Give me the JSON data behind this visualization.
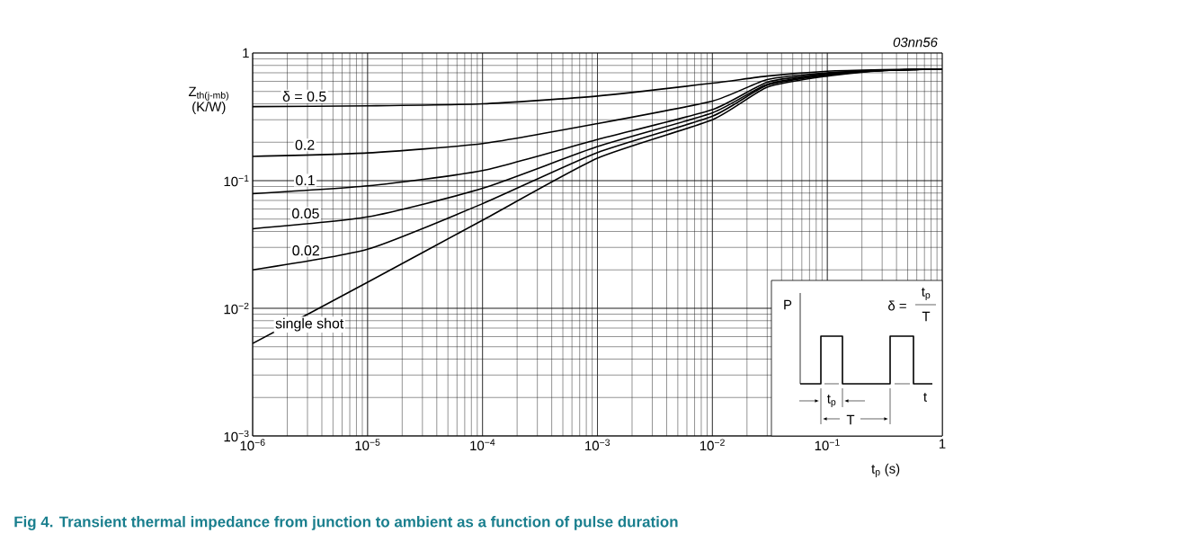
{
  "chart_data": {
    "type": "line",
    "title": "Fig 4.    Transient thermal impedance from junction to ambient as a function of pulse duration",
    "xlabel": "t$_{p}$ (s)",
    "ylabel": "Z$_{th(j-mb)}$ (K/W)",
    "log": "xy",
    "xlim": [
      1e-06,
      1
    ],
    "ylim": [
      0.001,
      1
    ],
    "xticks": [
      {
        "value": 1e-06,
        "label": "10$^{−6}$"
      },
      {
        "value": 1e-05,
        "label": "10$^{−5}$"
      },
      {
        "value": 0.0001,
        "label": "10$^{−4}$"
      },
      {
        "value": 0.001,
        "label": "10$^{−3}$"
      },
      {
        "value": 0.01,
        "label": "10$^{−2}$"
      },
      {
        "value": 0.1,
        "label": "10$^{−1}$"
      },
      1
    ],
    "yticks": [
      {
        "value": 0.001,
        "label": "10$^{−3}$"
      },
      {
        "value": 0.01,
        "label": "10$^{−2}$"
      },
      {
        "value": 0.1,
        "label": "10$^{−1}$"
      },
      1
    ],
    "grid": true,
    "legend": false,
    "marker": "none",
    "line_style": "solid",
    "x": [
      1e-06,
      1e-05,
      0.0001,
      0.001,
      0.01,
      0.03,
      0.1,
      0.3,
      1
    ],
    "series": [
      {
        "name": "δ = 0.5",
        "color": "#000000",
        "values": [
          0.38,
          0.386,
          0.4,
          0.46,
          0.58,
          0.66,
          0.72,
          0.74,
          0.75
        ]
      },
      {
        "name": "0.2",
        "color": "#000000",
        "values": [
          0.155,
          0.165,
          0.195,
          0.28,
          0.42,
          0.62,
          0.7,
          0.73,
          0.75
        ]
      },
      {
        "name": "0.1",
        "color": "#000000",
        "values": [
          0.079,
          0.091,
          0.12,
          0.21,
          0.36,
          0.59,
          0.69,
          0.73,
          0.75
        ]
      },
      {
        "name": "0.05",
        "color": "#000000",
        "values": [
          0.042,
          0.052,
          0.087,
          0.185,
          0.34,
          0.57,
          0.68,
          0.73,
          0.75
        ]
      },
      {
        "name": "0.02",
        "color": "#000000",
        "values": [
          0.02,
          0.029,
          0.066,
          0.166,
          0.32,
          0.56,
          0.67,
          0.73,
          0.75
        ]
      },
      {
        "name": "single shot",
        "color": "#000000",
        "values": [
          0.0053,
          0.016,
          0.049,
          0.15,
          0.3,
          0.54,
          0.66,
          0.73,
          0.75
        ]
      }
    ],
    "annotations": [
      "03nn56",
      "P",
      "δ =",
      "t$_{p}$",
      "T",
      "t$_{p}$",
      "T",
      "t"
    ]
  }
}
